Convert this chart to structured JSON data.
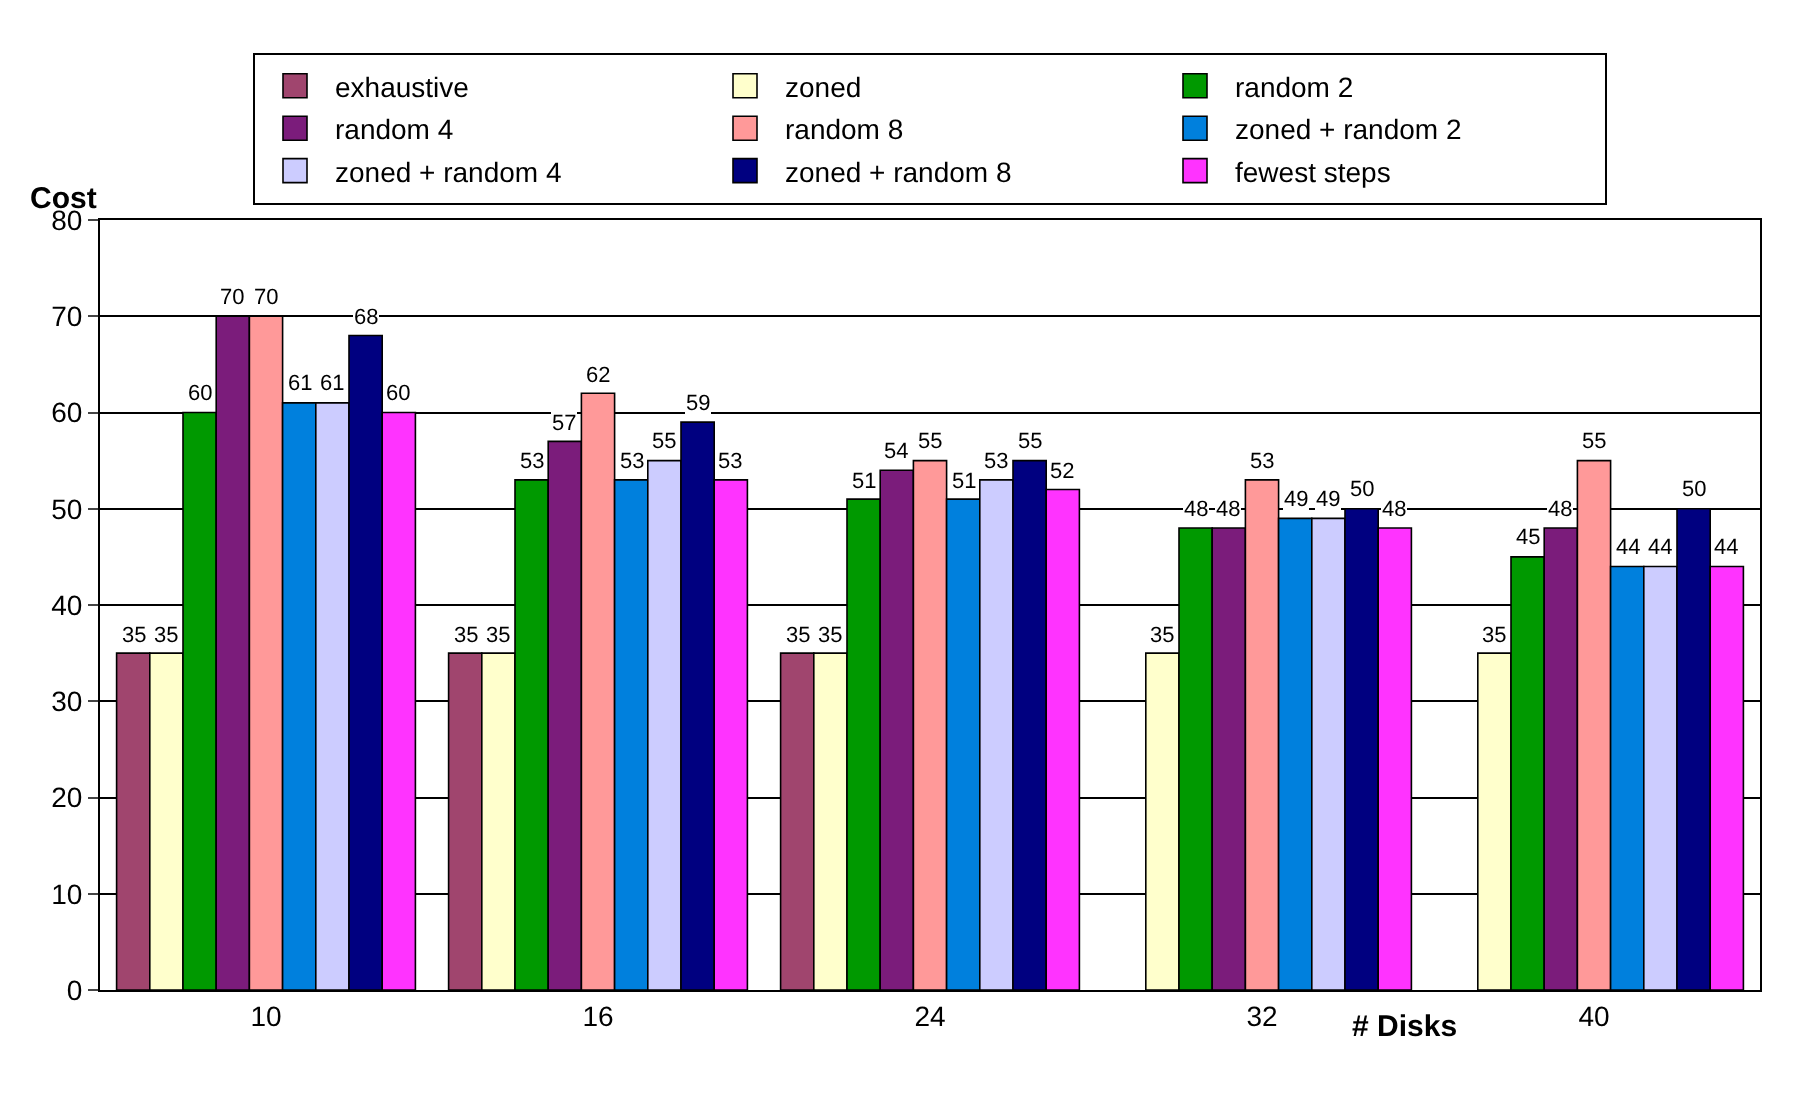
{
  "chart_data": {
    "type": "bar",
    "xlabel": "# Disks",
    "ylabel": "Cost",
    "categories": [
      "10",
      "16",
      "24",
      "32",
      "40"
    ],
    "series": [
      {
        "name": "exhaustive",
        "color": "#a0456e",
        "values": [
          35,
          35,
          35,
          null,
          null
        ]
      },
      {
        "name": "zoned",
        "color": "#ffffcc",
        "values": [
          35,
          35,
          35,
          35,
          35
        ]
      },
      {
        "name": "random 2",
        "color": "#009900",
        "values": [
          60,
          53,
          51,
          48,
          45
        ]
      },
      {
        "name": "random 4",
        "color": "#7b1c7b",
        "values": [
          70,
          57,
          54,
          48,
          48
        ]
      },
      {
        "name": "random 8",
        "color": "#ff9999",
        "values": [
          70,
          62,
          55,
          53,
          55
        ]
      },
      {
        "name": "zoned + random 2",
        "color": "#0080dd",
        "values": [
          61,
          53,
          51,
          49,
          44
        ]
      },
      {
        "name": "zoned + random 4",
        "color": "#ccccff",
        "values": [
          61,
          55,
          53,
          49,
          44
        ]
      },
      {
        "name": "zoned + random 8",
        "color": "#000080",
        "values": [
          68,
          59,
          55,
          50,
          50
        ]
      },
      {
        "name": "fewest steps",
        "color": "#ff33ff",
        "values": [
          60,
          53,
          52,
          48,
          44
        ]
      }
    ],
    "ylim": [
      0,
      80
    ],
    "yticks": [
      0,
      10,
      20,
      30,
      40,
      50,
      60,
      70,
      80
    ],
    "grid": "y",
    "legend": "top",
    "data_labels": true
  }
}
